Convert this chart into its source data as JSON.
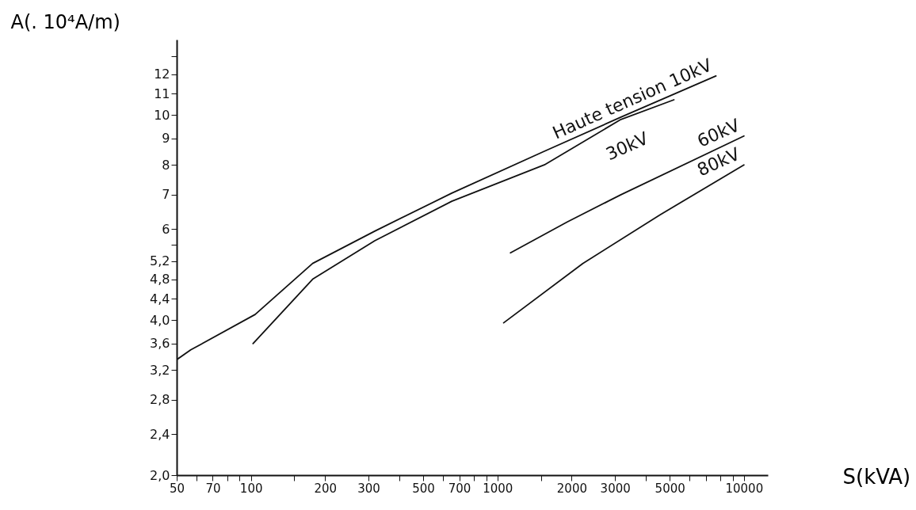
{
  "chart_data": {
    "type": "line",
    "xlabel": "S(kVA)",
    "ylabel": "A(. 10⁴A/m)",
    "log": "xy",
    "grid": false,
    "marker": "none",
    "line_style": "solid",
    "xlim": [
      50,
      12500
    ],
    "xticks": [
      50,
      {
        "value": 60,
        "label": null
      },
      70,
      {
        "value": 80,
        "label": null
      },
      {
        "value": 90,
        "label": null
      },
      100,
      {
        "value": 150,
        "label": null
      },
      200,
      300,
      {
        "value": 400,
        "label": null
      },
      500,
      {
        "value": 600,
        "label": null
      },
      700,
      {
        "value": 800,
        "label": null
      },
      {
        "value": 900,
        "label": null
      },
      1000,
      {
        "value": 1500,
        "label": null
      },
      2000,
      3000,
      {
        "value": 4000,
        "label": null
      },
      5000,
      {
        "value": 6000,
        "label": null
      },
      {
        "value": 7000,
        "label": null
      },
      {
        "value": 8000,
        "label": null
      },
      {
        "value": 9000,
        "label": null
      },
      10000
    ],
    "ylim": [
      2,
      14
    ],
    "yticks": [
      {
        "value": 2,
        "label": "2,0"
      },
      {
        "value": 2.4,
        "label": "2,4"
      },
      {
        "value": 2.8,
        "label": "2,8"
      },
      {
        "value": 3.2,
        "label": "3,2"
      },
      {
        "value": 3.6,
        "label": "3,6"
      },
      {
        "value": 4,
        "label": "4,0"
      },
      {
        "value": 4.4,
        "label": "4,4"
      },
      {
        "value": 4.8,
        "label": "4,8"
      },
      {
        "value": 5.2,
        "label": "5,2"
      },
      {
        "value": 5.6,
        "label": null
      },
      6,
      7,
      8,
      9,
      10,
      11,
      12,
      {
        "value": 13,
        "label": null
      }
    ],
    "series": [
      {
        "name": "Haute tension 10kV",
        "color": "#111111",
        "x": [
          50,
          57,
          104,
          178,
          318,
          653,
          1550,
          3170,
          7700
        ],
        "values": [
          3.35,
          3.5,
          4.1,
          5.15,
          5.95,
          7.05,
          8.5,
          9.9,
          11.9
        ]
      },
      {
        "name": "30kV",
        "color": "#111111",
        "x": [
          102,
          178,
          318,
          653,
          1550,
          3170,
          5200
        ],
        "values": [
          3.6,
          4.8,
          5.7,
          6.8,
          8.0,
          9.8,
          10.7
        ]
      },
      {
        "name": "60kV",
        "color": "#111111",
        "x": [
          1130,
          1920,
          3170,
          10000
        ],
        "values": [
          5.4,
          6.2,
          7.0,
          9.1
        ]
      },
      {
        "name": "80kV",
        "color": "#111111",
        "x": [
          1060,
          2220,
          4570,
          10000
        ],
        "values": [
          3.95,
          5.15,
          6.4,
          8.0
        ]
      }
    ]
  }
}
